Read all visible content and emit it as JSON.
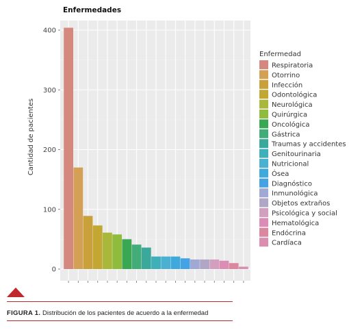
{
  "chart_data": {
    "type": "bar",
    "title": "Enfermedades",
    "ylabel": "Cantidad de pacientes",
    "xlabel": "",
    "ylim": [
      0,
      425
    ],
    "yticks": [
      0,
      100,
      200,
      300,
      400
    ],
    "grid": true,
    "legend_position": "right",
    "legend_title": "Enfermedad",
    "categories": [
      "Respiratoria",
      "Otorrino",
      "Infección",
      "Odontológica",
      "Neurológica",
      "Quirúrgica",
      "Oncológica",
      "Gástrica",
      "Traumas y accidentes",
      "Genitourinaria",
      "Nutricional",
      "Ósea",
      "Diagnóstico",
      "Inmunológica",
      "Objetos extraños",
      "Psicológica y social",
      "Hematológica",
      "Endócrina",
      "Cardíaca"
    ],
    "values": [
      404,
      170,
      89,
      73,
      61,
      58,
      50,
      41,
      36,
      21,
      21,
      21,
      18,
      16,
      16,
      16,
      14,
      10,
      4
    ],
    "colors": [
      "#d4887e",
      "#d3a055",
      "#c9a03a",
      "#c2a833",
      "#a9b83a",
      "#8fbc3c",
      "#3aa853",
      "#43ad7a",
      "#3aa89a",
      "#3fb0ba",
      "#4ab1d2",
      "#3fa9dc",
      "#45a2e4",
      "#9fa9d4",
      "#b0a6c6",
      "#d39fbf",
      "#db8db6",
      "#dc87a0",
      "#db8fb0"
    ]
  },
  "caption": {
    "label": "FIGURA 1.",
    "text": "Distribución de los pacientes de acuerdo a la enfermedad"
  }
}
